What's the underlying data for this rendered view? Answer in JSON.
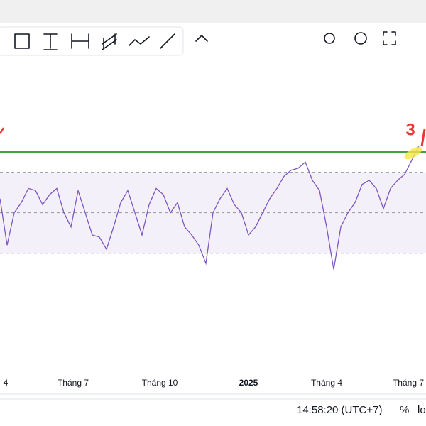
{
  "chart_data": {
    "type": "line",
    "x": [
      0,
      1,
      2,
      3,
      4,
      5,
      6,
      7,
      8,
      9,
      10,
      11,
      12,
      13,
      14,
      15,
      16,
      17,
      18,
      19,
      20,
      21,
      22,
      23,
      24,
      25,
      26,
      27,
      28,
      29,
      30,
      31,
      32,
      33,
      34,
      35,
      36,
      37,
      38,
      39,
      40,
      41,
      42,
      43,
      44,
      45,
      46,
      47,
      48,
      49,
      50,
      51,
      52,
      53,
      54,
      55,
      56,
      57,
      58,
      59
    ],
    "values": [
      57,
      34,
      50,
      55,
      62,
      61,
      54,
      59,
      62,
      50,
      43,
      61,
      50,
      39,
      38,
      32,
      43,
      55,
      61,
      50,
      39,
      54,
      62,
      59,
      50,
      55,
      43,
      39,
      34,
      25,
      50,
      57,
      62,
      54,
      50,
      39,
      43,
      50,
      57,
      62,
      68,
      71,
      72,
      75,
      66,
      61,
      43,
      22,
      43,
      50,
      55,
      64,
      66,
      62,
      52,
      62,
      66,
      69,
      76,
      83
    ],
    "color": "#7e57c2",
    "xlim": [
      0,
      60
    ],
    "ylim": [
      -29,
      127
    ],
    "xticks": [
      {
        "value": 0.8,
        "label": "4"
      },
      {
        "value": 10.3,
        "label": "Tháng 7"
      },
      {
        "value": 22.5,
        "label": "Tháng 10"
      },
      {
        "value": 35,
        "label": "2025"
      },
      {
        "value": 46,
        "label": "Tháng 4"
      },
      {
        "value": 57.5,
        "label": "Tháng 7"
      }
    ],
    "levels": [
      70,
      50,
      30
    ],
    "band_color": "#7e57c2",
    "hline": 80,
    "hline_color": "#43a047",
    "annotation": "3"
  },
  "status": {
    "time": "14:58:20 (UTC+7)",
    "percent": "%",
    "log": "lo"
  }
}
